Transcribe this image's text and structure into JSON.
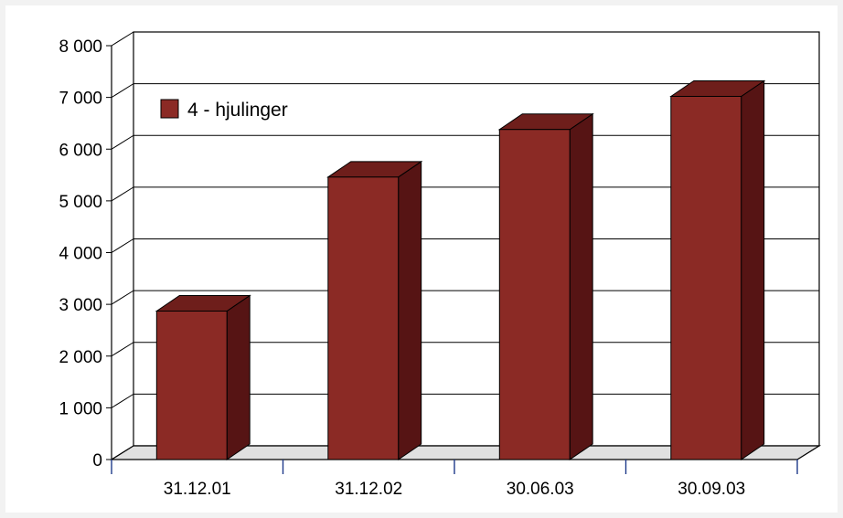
{
  "chart_data": {
    "type": "bar",
    "categories": [
      "31.12.01",
      "31.12.02",
      "30.06.03",
      "30.09.03"
    ],
    "series": [
      {
        "name": "4 - hjulinger",
        "values": [
          2870,
          5460,
          6380,
          7020
        ]
      }
    ],
    "ylim": [
      0,
      8000
    ],
    "y_ticks": [
      0,
      1000,
      2000,
      3000,
      4000,
      5000,
      6000,
      7000,
      8000
    ],
    "y_tick_labels": [
      "0",
      "1 000",
      "2 000",
      "3 000",
      "4 000",
      "5 000",
      "6 000",
      "7 000",
      "8 000"
    ],
    "grid": true,
    "legend_position": "top-left",
    "three_d": true,
    "colors": {
      "bar_front": "#8b2a25",
      "bar_side": "#561414",
      "bar_top": "#6e1e1b",
      "floor": "#e0e0e0",
      "axis_tick": "#1f3a8a"
    }
  }
}
